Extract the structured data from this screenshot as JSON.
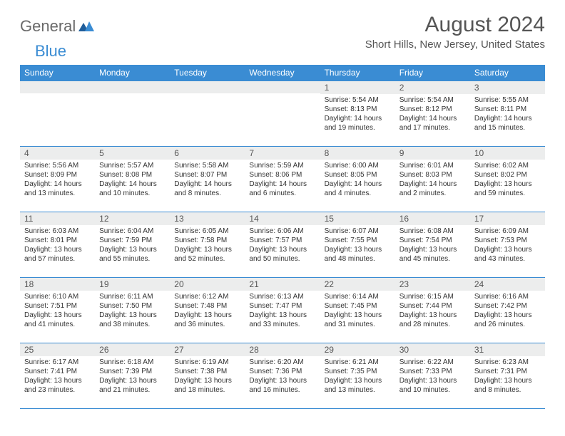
{
  "logo": {
    "word1": "General",
    "word2": "Blue"
  },
  "title": "August 2024",
  "location": "Short Hills, New Jersey, United States",
  "colors": {
    "accent": "#3a8cd3",
    "headerText": "#ffffff",
    "dayBg": "#eceded"
  },
  "dayHeaders": [
    "Sunday",
    "Monday",
    "Tuesday",
    "Wednesday",
    "Thursday",
    "Friday",
    "Saturday"
  ],
  "weeks": [
    [
      null,
      null,
      null,
      null,
      {
        "n": "1",
        "sunrise": "5:54 AM",
        "sunset": "8:13 PM",
        "daylight": "14 hours and 19 minutes."
      },
      {
        "n": "2",
        "sunrise": "5:54 AM",
        "sunset": "8:12 PM",
        "daylight": "14 hours and 17 minutes."
      },
      {
        "n": "3",
        "sunrise": "5:55 AM",
        "sunset": "8:11 PM",
        "daylight": "14 hours and 15 minutes."
      }
    ],
    [
      {
        "n": "4",
        "sunrise": "5:56 AM",
        "sunset": "8:09 PM",
        "daylight": "14 hours and 13 minutes."
      },
      {
        "n": "5",
        "sunrise": "5:57 AM",
        "sunset": "8:08 PM",
        "daylight": "14 hours and 10 minutes."
      },
      {
        "n": "6",
        "sunrise": "5:58 AM",
        "sunset": "8:07 PM",
        "daylight": "14 hours and 8 minutes."
      },
      {
        "n": "7",
        "sunrise": "5:59 AM",
        "sunset": "8:06 PM",
        "daylight": "14 hours and 6 minutes."
      },
      {
        "n": "8",
        "sunrise": "6:00 AM",
        "sunset": "8:05 PM",
        "daylight": "14 hours and 4 minutes."
      },
      {
        "n": "9",
        "sunrise": "6:01 AM",
        "sunset": "8:03 PM",
        "daylight": "14 hours and 2 minutes."
      },
      {
        "n": "10",
        "sunrise": "6:02 AM",
        "sunset": "8:02 PM",
        "daylight": "13 hours and 59 minutes."
      }
    ],
    [
      {
        "n": "11",
        "sunrise": "6:03 AM",
        "sunset": "8:01 PM",
        "daylight": "13 hours and 57 minutes."
      },
      {
        "n": "12",
        "sunrise": "6:04 AM",
        "sunset": "7:59 PM",
        "daylight": "13 hours and 55 minutes."
      },
      {
        "n": "13",
        "sunrise": "6:05 AM",
        "sunset": "7:58 PM",
        "daylight": "13 hours and 52 minutes."
      },
      {
        "n": "14",
        "sunrise": "6:06 AM",
        "sunset": "7:57 PM",
        "daylight": "13 hours and 50 minutes."
      },
      {
        "n": "15",
        "sunrise": "6:07 AM",
        "sunset": "7:55 PM",
        "daylight": "13 hours and 48 minutes."
      },
      {
        "n": "16",
        "sunrise": "6:08 AM",
        "sunset": "7:54 PM",
        "daylight": "13 hours and 45 minutes."
      },
      {
        "n": "17",
        "sunrise": "6:09 AM",
        "sunset": "7:53 PM",
        "daylight": "13 hours and 43 minutes."
      }
    ],
    [
      {
        "n": "18",
        "sunrise": "6:10 AM",
        "sunset": "7:51 PM",
        "daylight": "13 hours and 41 minutes."
      },
      {
        "n": "19",
        "sunrise": "6:11 AM",
        "sunset": "7:50 PM",
        "daylight": "13 hours and 38 minutes."
      },
      {
        "n": "20",
        "sunrise": "6:12 AM",
        "sunset": "7:48 PM",
        "daylight": "13 hours and 36 minutes."
      },
      {
        "n": "21",
        "sunrise": "6:13 AM",
        "sunset": "7:47 PM",
        "daylight": "13 hours and 33 minutes."
      },
      {
        "n": "22",
        "sunrise": "6:14 AM",
        "sunset": "7:45 PM",
        "daylight": "13 hours and 31 minutes."
      },
      {
        "n": "23",
        "sunrise": "6:15 AM",
        "sunset": "7:44 PM",
        "daylight": "13 hours and 28 minutes."
      },
      {
        "n": "24",
        "sunrise": "6:16 AM",
        "sunset": "7:42 PM",
        "daylight": "13 hours and 26 minutes."
      }
    ],
    [
      {
        "n": "25",
        "sunrise": "6:17 AM",
        "sunset": "7:41 PM",
        "daylight": "13 hours and 23 minutes."
      },
      {
        "n": "26",
        "sunrise": "6:18 AM",
        "sunset": "7:39 PM",
        "daylight": "13 hours and 21 minutes."
      },
      {
        "n": "27",
        "sunrise": "6:19 AM",
        "sunset": "7:38 PM",
        "daylight": "13 hours and 18 minutes."
      },
      {
        "n": "28",
        "sunrise": "6:20 AM",
        "sunset": "7:36 PM",
        "daylight": "13 hours and 16 minutes."
      },
      {
        "n": "29",
        "sunrise": "6:21 AM",
        "sunset": "7:35 PM",
        "daylight": "13 hours and 13 minutes."
      },
      {
        "n": "30",
        "sunrise": "6:22 AM",
        "sunset": "7:33 PM",
        "daylight": "13 hours and 10 minutes."
      },
      {
        "n": "31",
        "sunrise": "6:23 AM",
        "sunset": "7:31 PM",
        "daylight": "13 hours and 8 minutes."
      }
    ]
  ],
  "labels": {
    "sunrise": "Sunrise: ",
    "sunset": "Sunset: ",
    "daylight": "Daylight: "
  }
}
